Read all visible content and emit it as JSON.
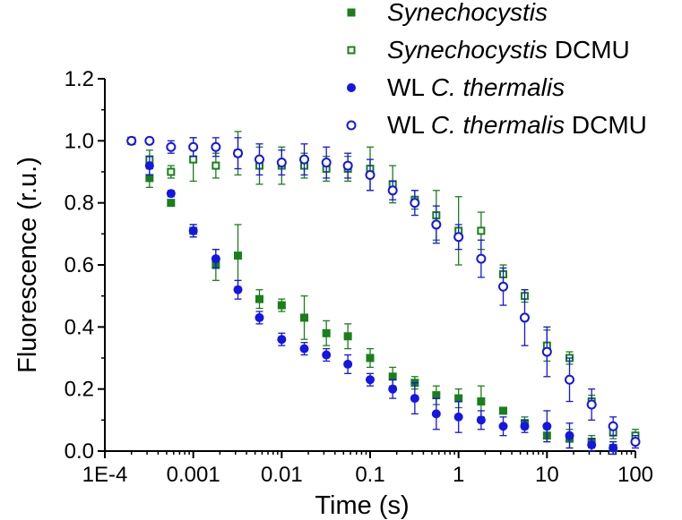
{
  "chart_data": {
    "type": "scatter",
    "title": "",
    "xlabel": "Time (s)",
    "ylabel": "Fluorescence (r.u.)",
    "xscale": "log",
    "xlim": [
      0.0001,
      100
    ],
    "ylim": [
      0.0,
      1.2
    ],
    "xticks": [
      0.0001,
      0.001,
      0.01,
      0.1,
      1,
      10,
      100
    ],
    "xtick_labels": [
      "1E-4",
      "0.001",
      "0.01",
      "0.1",
      "1",
      "10",
      "100"
    ],
    "yticks": [
      0.0,
      0.2,
      0.4,
      0.6,
      0.8,
      1.0,
      1.2
    ],
    "ytick_labels": [
      "0.0",
      "0.2",
      "0.4",
      "0.6",
      "0.8",
      "1.0",
      "1.2"
    ],
    "grid": false,
    "legend_position": "top-right",
    "x": [
      0.0002,
      0.00032,
      0.00056,
      0.001,
      0.0018,
      0.0032,
      0.0056,
      0.01,
      0.018,
      0.032,
      0.056,
      0.1,
      0.18,
      0.32,
      0.56,
      1,
      1.8,
      3.2,
      5.6,
      10,
      18,
      32,
      56,
      100
    ],
    "series": [
      {
        "name": "Synechocystis",
        "legend_label": {
          "italic": "Synechocystis",
          "plain": ""
        },
        "marker": "filled-square",
        "color": "#1a7f1a",
        "values": [
          1.0,
          0.88,
          0.8,
          0.71,
          0.6,
          0.63,
          0.49,
          0.47,
          0.43,
          0.38,
          0.37,
          0.3,
          0.24,
          0.22,
          0.18,
          0.17,
          0.16,
          0.13,
          0.09,
          0.05,
          0.04,
          0.03,
          0.01,
          null
        ],
        "errors": [
          0.01,
          0.03,
          0.01,
          0.02,
          0.05,
          0.1,
          0.03,
          0.02,
          0.07,
          0.04,
          0.04,
          0.03,
          0.03,
          0.02,
          0.03,
          0.03,
          0.05,
          0.01,
          0.02,
          0.02,
          0.03,
          0.02,
          0.02,
          null
        ]
      },
      {
        "name": "Synechocystis DCMU",
        "legend_label": {
          "italic": "Synechocystis",
          "plain": " DCMU"
        },
        "marker": "open-square",
        "color": "#1a7f1a",
        "values": [
          1.0,
          0.94,
          0.9,
          0.94,
          0.92,
          0.96,
          0.92,
          0.92,
          0.92,
          0.91,
          0.91,
          0.91,
          0.86,
          0.81,
          0.76,
          0.71,
          0.71,
          0.57,
          0.5,
          0.34,
          0.3,
          0.16,
          0.06,
          0.05
        ],
        "errors": [
          0.01,
          0.03,
          0.02,
          0.07,
          0.04,
          0.07,
          0.06,
          0.06,
          0.04,
          0.04,
          0.04,
          0.07,
          0.06,
          0.03,
          0.08,
          0.11,
          0.06,
          0.03,
          0.02,
          0.05,
          0.02,
          0.02,
          0.02,
          0.02
        ]
      },
      {
        "name": "WL C. thermalis",
        "legend_label": {
          "plain_prefix": "WL ",
          "italic": "C. thermalis",
          "plain": ""
        },
        "marker": "filled-circle",
        "color": "#1515e6",
        "values": [
          1.0,
          0.92,
          0.83,
          0.71,
          0.62,
          0.52,
          0.43,
          0.36,
          0.33,
          0.31,
          0.28,
          0.23,
          0.2,
          0.17,
          0.12,
          0.11,
          0.1,
          0.08,
          0.08,
          0.08,
          0.05,
          0.02,
          0.01,
          null
        ],
        "errors": [
          0.01,
          0.03,
          0.01,
          0.02,
          0.03,
          0.03,
          0.02,
          0.02,
          0.02,
          0.02,
          0.03,
          0.02,
          0.03,
          0.05,
          0.05,
          0.05,
          0.03,
          0.03,
          0.02,
          0.05,
          0.04,
          0.02,
          0.02,
          null
        ]
      },
      {
        "name": "WL C. thermalis DCMU",
        "legend_label": {
          "plain_prefix": "WL ",
          "italic": "C. thermalis",
          "plain": " DCMU"
        },
        "marker": "open-circle",
        "color": "#1515e6",
        "values": [
          1.0,
          1.0,
          0.98,
          0.98,
          0.98,
          0.96,
          0.94,
          0.93,
          0.94,
          0.93,
          0.92,
          0.89,
          0.84,
          0.8,
          0.73,
          0.69,
          0.62,
          0.53,
          0.43,
          0.32,
          0.23,
          0.15,
          0.08,
          0.03
        ],
        "errors": [
          0.01,
          0.01,
          0.02,
          0.03,
          0.03,
          0.05,
          0.05,
          0.04,
          0.05,
          0.05,
          0.04,
          0.05,
          0.03,
          0.04,
          0.06,
          0.04,
          0.06,
          0.06,
          0.09,
          0.08,
          0.07,
          0.05,
          0.03,
          0.02
        ]
      }
    ]
  }
}
